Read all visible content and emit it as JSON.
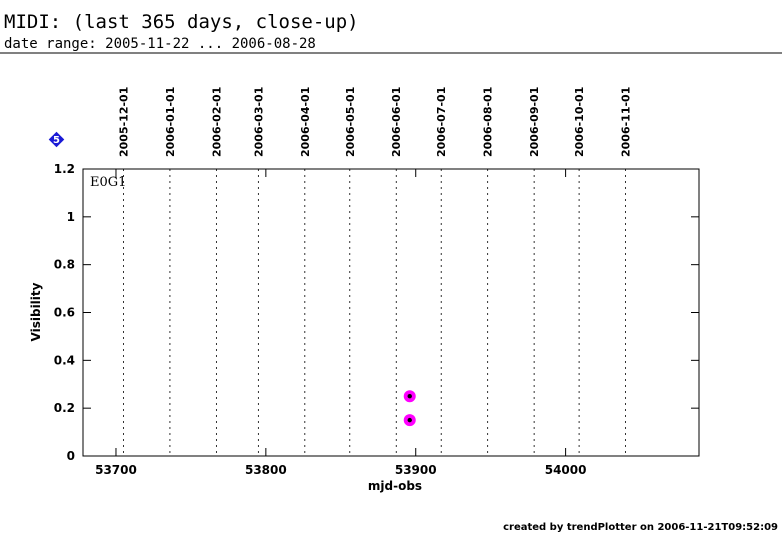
{
  "chart_data": {
    "type": "scatter",
    "title": "MIDI: (last 365 days, close-up)",
    "subtitle": "date range: 2005-11-22 ... 2006-08-28",
    "badge": "5",
    "panel_label": "E0G1",
    "x_label": "mjd-obs",
    "y_label": "Visibility",
    "x": [
      53896,
      53896
    ],
    "values": [
      0.25,
      0.15
    ],
    "color": "#ff00ff",
    "xlim": [
      53678,
      54089
    ],
    "ylim": [
      0,
      1.2
    ],
    "xticks": [
      53700,
      53800,
      53900,
      54000
    ],
    "yticks": [
      0,
      0.2,
      0.4,
      0.6,
      0.8,
      1,
      1.2
    ],
    "date_ticks": [
      {
        "value": 53705,
        "label": "2005-12-01"
      },
      {
        "value": 53736,
        "label": "2006-01-01"
      },
      {
        "value": 53767,
        "label": "2006-02-01"
      },
      {
        "value": 53795,
        "label": "2006-03-01"
      },
      {
        "value": 53826,
        "label": "2006-04-01"
      },
      {
        "value": 53856,
        "label": "2006-05-01"
      },
      {
        "value": 53887,
        "label": "2006-06-01"
      },
      {
        "value": 53917,
        "label": "2006-07-01"
      },
      {
        "value": 53948,
        "label": "2006-08-01"
      },
      {
        "value": 53979,
        "label": "2006-09-01"
      },
      {
        "value": 54009,
        "label": "2006-10-01"
      },
      {
        "value": 54040,
        "label": "2006-11-01"
      }
    ],
    "footer": "created by trendPlotter on 2006-11-21T09:52:09"
  }
}
